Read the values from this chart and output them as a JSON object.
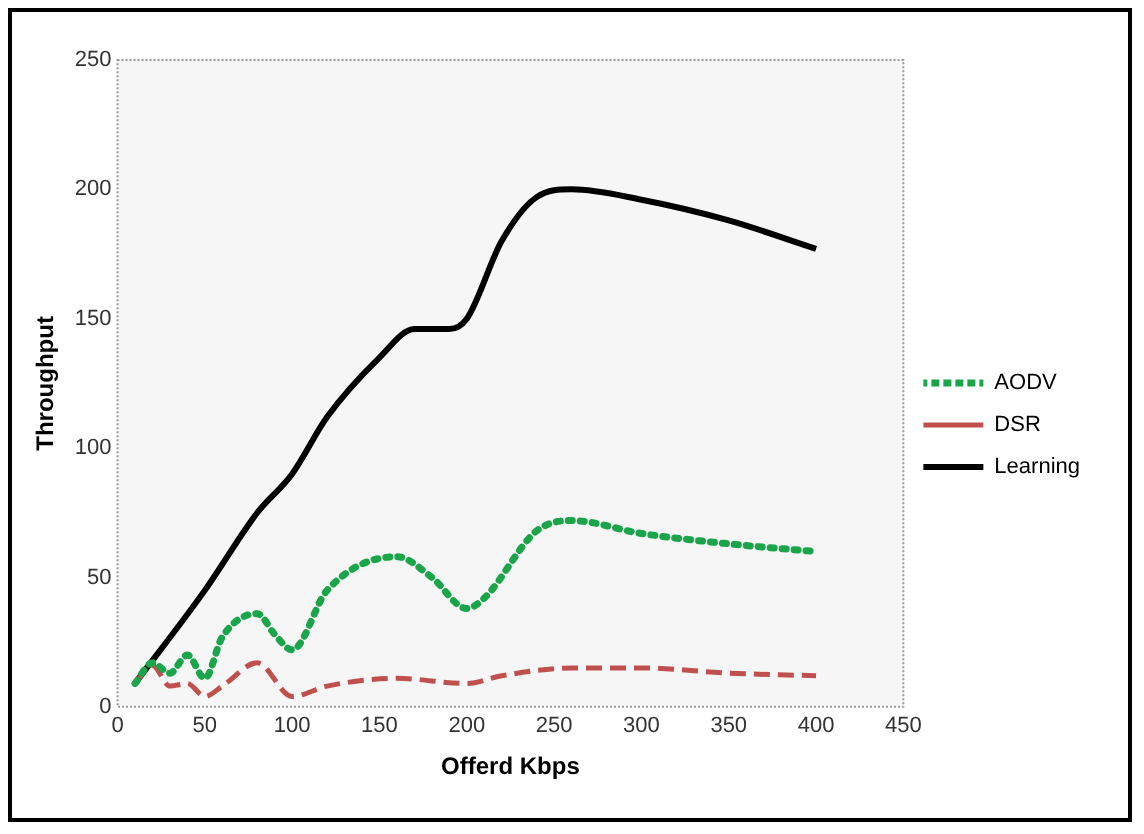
{
  "chart_data": {
    "type": "line",
    "xlabel": "Offerd Kbps",
    "ylabel": "Throughput",
    "xlim": [
      0,
      450
    ],
    "xticks": [
      0,
      50,
      100,
      150,
      200,
      250,
      300,
      350,
      400,
      450
    ],
    "ylim": [
      0,
      250
    ],
    "yticks": [
      0,
      50,
      100,
      150,
      200,
      250
    ],
    "grid": false,
    "legend": "right",
    "marker": "none",
    "series": [
      {
        "name": "AODV",
        "color": "#1aa54a",
        "line_style": "dotted",
        "x": [
          10,
          20,
          30,
          40,
          50,
          60,
          80,
          90,
          100,
          120,
          160,
          180,
          200,
          210,
          240,
          260,
          300,
          350,
          400
        ],
        "values": [
          9,
          17,
          13,
          20,
          11,
          27,
          36,
          28,
          22,
          45,
          58,
          50,
          38,
          42,
          68,
          72,
          67,
          63,
          60
        ]
      },
      {
        "name": "DSR",
        "color": "#c0504d",
        "line_style": "dashed",
        "x": [
          10,
          20,
          30,
          40,
          50,
          60,
          80,
          100,
          120,
          160,
          200,
          220,
          260,
          300,
          350,
          400
        ],
        "values": [
          9,
          16,
          8,
          9,
          4,
          8,
          17,
          4,
          8,
          11,
          9,
          12,
          15,
          15,
          13,
          12
        ]
      },
      {
        "name": "Learning",
        "color": "#000000",
        "line_style": "solid",
        "x": [
          10,
          50,
          80,
          100,
          120,
          150,
          170,
          190,
          200,
          220,
          240,
          260,
          300,
          350,
          400
        ],
        "values": [
          9,
          45,
          75,
          90,
          112,
          135,
          146,
          146,
          150,
          180,
          197,
          200,
          196,
          188,
          177
        ]
      }
    ]
  }
}
